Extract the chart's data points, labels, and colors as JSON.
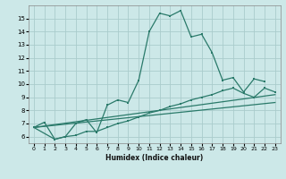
{
  "bg_color": "#cce8e8",
  "grid_color": "#aacccc",
  "line_color": "#2a7a6a",
  "xlabel": "Humidex (Indice chaleur)",
  "xlim": [
    -0.5,
    23.5
  ],
  "ylim": [
    5.5,
    16.0
  ],
  "yticks": [
    6,
    7,
    8,
    9,
    10,
    11,
    12,
    13,
    14,
    15
  ],
  "xticks": [
    0,
    1,
    2,
    3,
    4,
    5,
    6,
    7,
    8,
    9,
    10,
    11,
    12,
    13,
    14,
    15,
    16,
    17,
    18,
    19,
    20,
    21,
    22,
    23
  ],
  "series1_x": [
    0,
    1,
    2,
    3,
    4,
    5,
    6,
    7,
    8,
    9,
    10,
    11,
    12,
    13,
    14,
    15,
    16,
    17,
    18,
    19,
    20,
    21,
    22
  ],
  "series1_y": [
    6.7,
    7.1,
    5.8,
    6.0,
    7.0,
    7.3,
    6.3,
    8.4,
    8.8,
    8.6,
    10.3,
    14.0,
    15.4,
    15.2,
    15.6,
    13.6,
    13.8,
    12.4,
    10.3,
    10.5,
    9.4,
    10.4,
    10.2
  ],
  "series2_x": [
    0,
    2,
    3,
    4,
    5,
    6,
    7,
    8,
    9,
    10,
    11,
    12,
    13,
    14,
    15,
    16,
    17,
    18,
    19,
    20,
    21,
    22,
    23
  ],
  "series2_y": [
    6.7,
    5.8,
    6.0,
    6.1,
    6.4,
    6.4,
    6.7,
    7.0,
    7.2,
    7.5,
    7.8,
    8.0,
    8.3,
    8.5,
    8.8,
    9.0,
    9.2,
    9.5,
    9.7,
    9.3,
    9.0,
    9.7,
    9.4
  ],
  "series3_x": [
    0,
    23
  ],
  "series3_y": [
    6.7,
    9.2
  ],
  "series4_x": [
    0,
    23
  ],
  "series4_y": [
    6.7,
    8.6
  ]
}
